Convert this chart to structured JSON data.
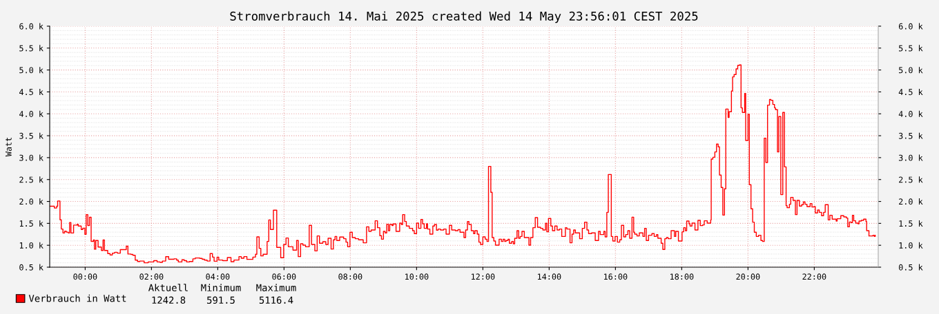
{
  "chart_data": {
    "type": "step",
    "title": "Stromverbrauch 14. Mai 2025 created Wed 14 May 23:56:01 CEST 2025",
    "ylabel": "Watt",
    "xlim": [
      -1.07,
      23.93
    ],
    "xticks": [
      {
        "value": 0,
        "label": "00:00"
      },
      {
        "value": 2,
        "label": "02:00"
      },
      {
        "value": 4,
        "label": "04:00"
      },
      {
        "value": 6,
        "label": "06:00"
      },
      {
        "value": 8,
        "label": "08:00"
      },
      {
        "value": 10,
        "label": "10:00"
      },
      {
        "value": 12,
        "label": "12:00"
      },
      {
        "value": 14,
        "label": "14:00"
      },
      {
        "value": 16,
        "label": "16:00"
      },
      {
        "value": 18,
        "label": "18:00"
      },
      {
        "value": 20,
        "label": "20:00"
      },
      {
        "value": 22,
        "label": "22:00"
      }
    ],
    "ylim": [
      500,
      6000
    ],
    "yticks": [
      {
        "value": 500,
        "label": "0.5 k"
      },
      {
        "value": 1000,
        "label": "1.0 k"
      },
      {
        "value": 1500,
        "label": "1.5 k"
      },
      {
        "value": 2000,
        "label": "2.0 k"
      },
      {
        "value": 2500,
        "label": "2.5 k"
      },
      {
        "value": 3000,
        "label": "3.0 k"
      },
      {
        "value": 3500,
        "label": "3.5 k"
      },
      {
        "value": 4000,
        "label": "4.0 k"
      },
      {
        "value": 4500,
        "label": "4.5 k"
      },
      {
        "value": 5000,
        "label": "5.0 k"
      },
      {
        "value": 5500,
        "label": "5.5 k"
      },
      {
        "value": 6000,
        "label": "6.0 k"
      }
    ],
    "y2lim": [
      500,
      6000
    ],
    "y2ticks": [
      {
        "value": 500,
        "label": "0.5 k"
      },
      {
        "value": 1000,
        "label": "1.0 k"
      },
      {
        "value": 1500,
        "label": "1.5 k"
      },
      {
        "value": 2000,
        "label": "2.0 k"
      },
      {
        "value": 2500,
        "label": "2.5 k"
      },
      {
        "value": 3000,
        "label": "3.0 k"
      },
      {
        "value": 3500,
        "label": "3.5 k"
      },
      {
        "value": 4000,
        "label": "4.0 k"
      },
      {
        "value": 4500,
        "label": "4.5 k"
      },
      {
        "value": 5000,
        "label": "5.0 k"
      },
      {
        "value": 5500,
        "label": "5.5 k"
      },
      {
        "value": 6000,
        "label": "6.0 k"
      }
    ],
    "grid": true,
    "legend": "bottom left",
    "marker": "none",
    "line_style": "solid",
    "annotations": [
      "Aktuell",
      "Minimum",
      "Maximum",
      "1242.8",
      "591.5",
      "5116.4"
    ],
    "series": [
      {
        "name": "Verbrauch in Watt",
        "color": "#ff0000",
        "x": [
          -1.07,
          -0.93,
          -0.86,
          -0.83,
          -0.76,
          -0.72,
          -0.67,
          -0.62,
          -0.57,
          -0.51,
          -0.47,
          -0.43,
          -0.35,
          -0.24,
          -0.21,
          -0.12,
          -0.07,
          -0.01,
          0.03,
          0.08,
          0.13,
          0.18,
          0.25,
          0.28,
          0.32,
          0.39,
          0.49,
          0.54,
          0.58,
          0.68,
          0.75,
          0.82,
          0.89,
          0.97,
          1.06,
          1.24,
          1.29,
          1.38,
          1.44,
          1.51,
          1.58,
          1.65,
          1.78,
          1.9,
          2.0,
          2.07,
          2.17,
          2.26,
          2.33,
          2.43,
          2.52,
          2.68,
          2.76,
          2.81,
          2.87,
          2.92,
          2.99,
          3.06,
          3.15,
          3.25,
          3.32,
          3.46,
          3.53,
          3.6,
          3.68,
          3.77,
          3.84,
          3.89,
          3.98,
          4.03,
          4.15,
          4.29,
          4.4,
          4.49,
          4.64,
          4.71,
          4.79,
          4.88,
          5.06,
          5.14,
          5.18,
          5.25,
          5.3,
          5.37,
          5.49,
          5.54,
          5.59,
          5.68,
          5.78,
          5.9,
          5.99,
          6.06,
          6.13,
          6.27,
          6.38,
          6.43,
          6.5,
          6.57,
          6.65,
          6.76,
          6.83,
          6.93,
          7.0,
          7.07,
          7.17,
          7.26,
          7.33,
          7.42,
          7.49,
          7.54,
          7.59,
          7.68,
          7.8,
          7.87,
          7.92,
          7.99,
          8.06,
          8.15,
          8.25,
          8.39,
          8.49,
          8.56,
          8.63,
          8.75,
          8.82,
          8.89,
          8.94,
          9.0,
          9.05,
          9.1,
          9.15,
          9.19,
          9.26,
          9.29,
          9.38,
          9.49,
          9.54,
          9.58,
          9.64,
          9.69,
          9.78,
          9.88,
          9.93,
          10.0,
          10.06,
          10.13,
          10.18,
          10.23,
          10.3,
          10.33,
          10.4,
          10.49,
          10.54,
          10.6,
          10.65,
          10.72,
          10.82,
          10.89,
          10.99,
          11.06,
          11.17,
          11.25,
          11.31,
          11.43,
          11.48,
          11.535,
          11.58,
          11.65,
          11.72,
          11.76,
          11.83,
          11.88,
          11.93,
          12.0,
          12.07,
          12.125,
          12.17,
          12.24,
          12.28,
          12.33,
          12.38,
          12.49,
          12.56,
          12.61,
          12.66,
          12.7,
          12.76,
          12.8,
          12.87,
          12.92,
          12.96,
          13.03,
          13.08,
          13.125,
          13.18,
          13.25,
          13.39,
          13.44,
          13.51,
          13.58,
          13.65,
          13.74,
          13.81,
          13.89,
          13.93,
          13.98,
          14.05,
          14.1,
          14.17,
          14.24,
          14.31,
          14.38,
          14.49,
          14.535,
          14.63,
          14.69,
          14.74,
          14.79,
          14.92,
          15.0,
          15.07,
          15.14,
          15.19,
          15.28,
          15.39,
          15.49,
          15.54,
          15.65,
          15.69,
          15.74,
          15.785,
          15.875,
          15.92,
          15.99,
          16.06,
          16.13,
          16.18,
          16.25,
          16.31,
          16.375,
          16.43,
          16.5,
          16.55,
          16.58,
          16.65,
          16.72,
          16.83,
          16.88,
          16.93,
          17.0,
          17.1,
          17.17,
          17.24,
          17.28,
          17.38,
          17.43,
          17.49,
          17.54,
          17.59,
          17.68,
          17.78,
          17.82,
          17.9,
          18.01,
          18.06,
          18.11,
          18.15,
          18.22,
          18.25,
          18.31,
          18.4,
          18.49,
          18.56,
          18.63,
          18.68,
          18.77,
          18.875,
          18.89,
          18.94,
          19.0,
          19.05,
          19.1,
          19.14,
          19.19,
          19.24,
          19.29,
          19.33,
          19.4,
          19.43,
          19.5,
          19.535,
          19.58,
          19.64,
          19.69,
          19.74,
          19.79,
          19.83,
          19.9,
          19.93,
          20.0,
          20.04,
          20.09,
          20.14,
          20.19,
          20.25,
          20.32,
          20.39,
          20.44,
          20.49,
          20.54,
          20.59,
          20.65,
          20.69,
          20.75,
          20.8,
          20.83,
          20.89,
          20.93,
          20.99,
          21.05,
          21.1,
          21.15,
          21.18,
          21.25,
          21.29,
          21.36,
          21.43,
          21.48,
          21.55,
          21.62,
          21.67,
          21.72,
          21.78,
          21.875,
          21.93,
          21.99,
          22.03,
          22.1,
          22.15,
          22.22,
          22.28,
          22.33,
          22.42,
          22.47,
          22.54,
          22.66,
          22.69,
          22.8,
          22.89,
          22.97,
          23.01,
          23.06,
          23.11,
          23.15,
          23.19,
          23.25,
          23.32,
          23.35,
          23.42,
          23.49,
          23.56,
          23.58,
          23.65,
          23.77,
          23.81,
          23.84
        ],
        "values": [
          1890,
          1850,
          1890,
          2010,
          1580,
          1370,
          1280,
          1320,
          1300,
          1280,
          1520,
          1280,
          1460,
          1480,
          1440,
          1360,
          1390,
          1250,
          1700,
          1450,
          1640,
          1090,
          1120,
          910,
          1110,
          960,
          880,
          1120,
          880,
          810,
          780,
          820,
          840,
          820,
          900,
          980,
          800,
          790,
          770,
          660,
          630,
          640,
          600,
          620,
          620,
          650,
          620,
          610,
          640,
          740,
          680,
          690,
          660,
          620,
          620,
          670,
          650,
          620,
          630,
          690,
          710,
          700,
          680,
          660,
          640,
          810,
          730,
          636,
          730,
          663,
          650,
          720,
          626,
          663,
          741,
          705,
          741,
          678,
          730,
          794,
          1192,
          930,
          757,
          794,
          1087,
          1579,
          1360,
          1800,
          951,
          715,
          1019,
          1166,
          966,
          888,
          1108,
          741,
          1035,
          1003,
          966,
          1454,
          1019,
          872,
          1213,
          1045,
          1082,
          1019,
          1160,
          914,
          1124,
          1202,
          1108,
          1187,
          1150,
          1071,
          966,
          1297,
          1176,
          1150,
          1124,
          1056,
          1422,
          1318,
          1349,
          1558,
          1401,
          1218,
          1139,
          1318,
          1281,
          1480,
          1333,
          1475,
          1448,
          1485,
          1318,
          1506,
          1475,
          1700,
          1543,
          1438,
          1386,
          1333,
          1265,
          1506,
          1386,
          1590,
          1490,
          1386,
          1490,
          1370,
          1255,
          1438,
          1475,
          1344,
          1370,
          1349,
          1370,
          1255,
          1454,
          1349,
          1333,
          1359,
          1297,
          1176,
          1349,
          1543,
          1475,
          1333,
          1265,
          1333,
          1255,
          1071,
          1019,
          1192,
          1139,
          1087,
          2800,
          2208,
          1176,
          1097,
          1003,
          1139,
          1087,
          1139,
          1087,
          1108,
          1139,
          1045,
          1087,
          1035,
          1160,
          1333,
          1160,
          1202,
          1318,
          1176,
          1003,
          1176,
          1401,
          1632,
          1412,
          1386,
          1349,
          1501,
          1307,
          1611,
          1438,
          1333,
          1438,
          1349,
          1370,
          1202,
          1401,
          1370,
          1056,
          1255,
          1349,
          1281,
          1150,
          1386,
          1527,
          1349,
          1265,
          1281,
          1108,
          1318,
          1244,
          1318,
          1192,
          1752,
          2616,
          1202,
          1097,
          1202,
          1071,
          1124,
          1454,
          1192,
          1244,
          1333,
          1160,
          1642,
          1297,
          1255,
          1213,
          1281,
          1202,
          1386,
          1108,
          1229,
          1265,
          1202,
          1244,
          1160,
          1045,
          904,
          1150,
          1176,
          1150,
          1333,
          1202,
          1318,
          1097,
          1307,
          1401,
          1333,
          1553,
          1490,
          1438,
          1506,
          1349,
          1569,
          1448,
          1464,
          1558,
          1506,
          1579,
          2967,
          3009,
          3130,
          3308,
          3245,
          2601,
          2318,
          1689,
          2287,
          4109,
          3916,
          4047,
          4518,
          4843,
          4895,
          5026,
          5105,
          5115,
          4136,
          4031,
          4466,
          3392,
          3989,
          2381,
          1831,
          1527,
          1297,
          1202,
          1229,
          1108,
          1087,
          3444,
          2889,
          4198,
          4329,
          4308,
          4214,
          4136,
          4094,
          3130,
          3937,
          2156,
          4031,
          2789,
          1904,
          1857,
          1936,
          2093,
          2025,
          1700,
          2025,
          1894,
          1925,
          1988,
          1936,
          1883,
          1951,
          1873,
          1883,
          1737,
          1805,
          1752,
          1674,
          1752,
          1925,
          1579,
          1684,
          1595,
          1553,
          1606,
          1674,
          1647,
          1621,
          1422,
          1532,
          1517,
          1684,
          1558,
          1506,
          1490,
          1553,
          1569,
          1595,
          1543,
          1333,
          1213,
          1229,
          1202,
          1229
        ]
      }
    ]
  }
}
